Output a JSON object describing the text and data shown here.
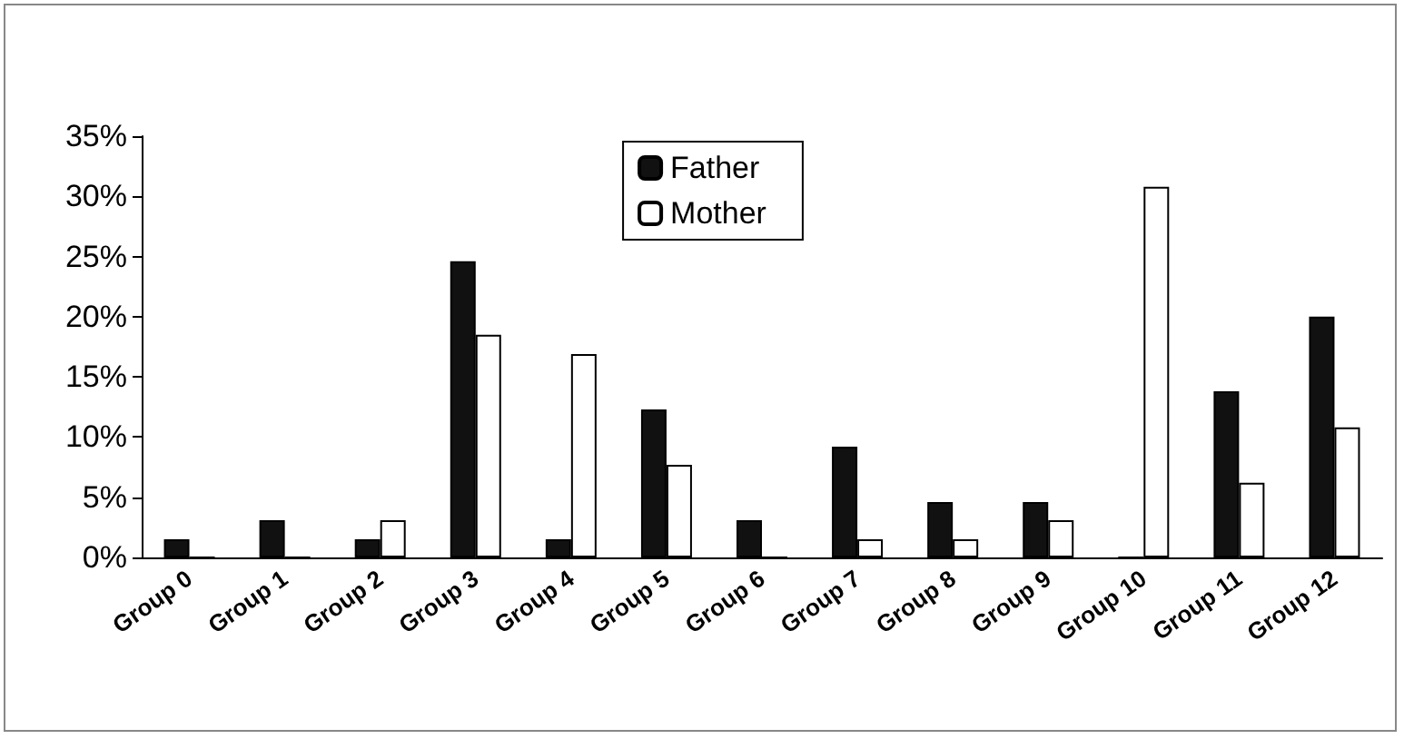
{
  "chart_data": {
    "type": "bar",
    "categories": [
      "Group 0",
      "Group 1",
      "Group 2",
      "Group 3",
      "Group 4",
      "Group 5",
      "Group 6",
      "Group 7",
      "Group 8",
      "Group 9",
      "Group 10",
      "Group 11",
      "Group 12"
    ],
    "series": [
      {
        "name": "Father",
        "color": "#111111",
        "values": [
          1.5,
          3.1,
          1.5,
          24.6,
          1.5,
          12.3,
          3.1,
          9.2,
          4.6,
          4.6,
          0,
          13.8,
          20.0
        ]
      },
      {
        "name": "Mother",
        "color": "#ffffff",
        "values": [
          0,
          0,
          3.1,
          18.5,
          16.9,
          7.7,
          0,
          1.5,
          1.5,
          3.1,
          30.8,
          6.2,
          10.8
        ]
      }
    ],
    "ylim": [
      0,
      35
    ],
    "yticks": [
      {
        "value": 0,
        "label": "0%"
      },
      {
        "value": 5,
        "label": "5%"
      },
      {
        "value": 10,
        "label": "10%"
      },
      {
        "value": 15,
        "label": "15%"
      },
      {
        "value": 20,
        "label": "20%"
      },
      {
        "value": 25,
        "label": "25%"
      },
      {
        "value": 30,
        "label": "30%"
      },
      {
        "value": 35,
        "label": "35%"
      }
    ],
    "grid": false,
    "legend": "top"
  }
}
